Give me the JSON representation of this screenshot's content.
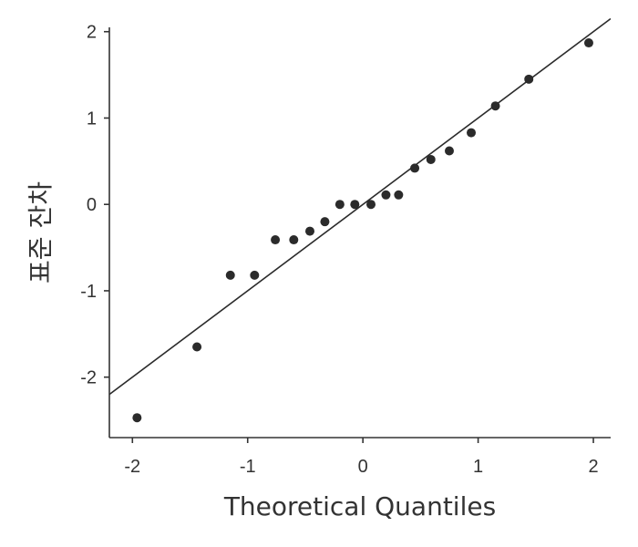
{
  "chart_data": {
    "type": "scatter",
    "title": "",
    "xlabel": "Theoretical Quantiles",
    "ylabel": "표준 잔차",
    "xlim": [
      -2.2,
      2.15
    ],
    "ylim": [
      -2.7,
      2.05
    ],
    "x_ticks": [
      -2,
      -1,
      0,
      1,
      2
    ],
    "y_ticks": [
      -2,
      -1,
      0,
      1,
      2
    ],
    "x_tick_labels": [
      "-2",
      "-1",
      "0",
      "1",
      "2"
    ],
    "y_tick_labels": [
      "-2",
      "-1",
      "0",
      "1",
      "2"
    ],
    "grid": false,
    "colors": {
      "point": "#2b2b2b",
      "line": "#2b2b2b",
      "axis": "#333333",
      "text": "#333333"
    },
    "reference_line": {
      "slope": 1.0,
      "intercept": 0.0
    },
    "points": [
      {
        "x": -1.96,
        "y": -2.47
      },
      {
        "x": -1.44,
        "y": -1.65
      },
      {
        "x": -1.15,
        "y": -0.82
      },
      {
        "x": -0.94,
        "y": -0.82
      },
      {
        "x": -0.76,
        "y": -0.41
      },
      {
        "x": -0.6,
        "y": -0.41
      },
      {
        "x": -0.46,
        "y": -0.31
      },
      {
        "x": -0.33,
        "y": -0.2
      },
      {
        "x": -0.2,
        "y": 0.0
      },
      {
        "x": -0.07,
        "y": 0.0
      },
      {
        "x": 0.07,
        "y": 0.0
      },
      {
        "x": 0.2,
        "y": 0.11
      },
      {
        "x": 0.31,
        "y": 0.11
      },
      {
        "x": 0.45,
        "y": 0.42
      },
      {
        "x": 0.59,
        "y": 0.52
      },
      {
        "x": 0.75,
        "y": 0.62
      },
      {
        "x": 0.94,
        "y": 0.83
      },
      {
        "x": 1.15,
        "y": 1.14
      },
      {
        "x": 1.44,
        "y": 1.45
      },
      {
        "x": 1.96,
        "y": 1.87
      }
    ]
  }
}
